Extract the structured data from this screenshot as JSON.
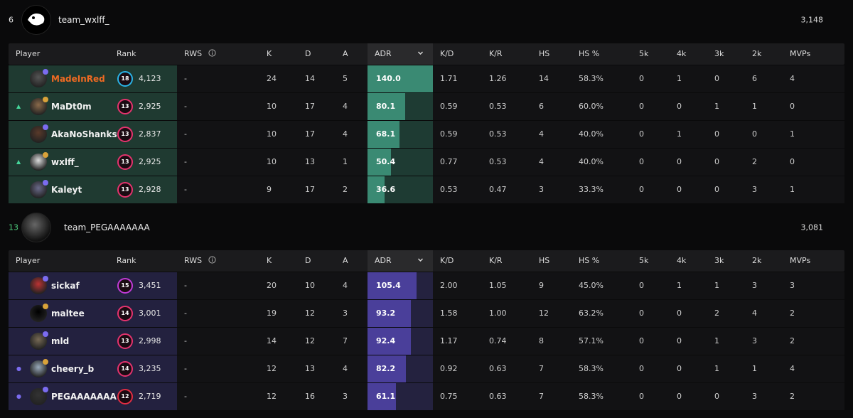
{
  "colors": {
    "team1_player_bg": "#1f3a31",
    "team1_adr_fill": "#3a8a73",
    "team1_adr_track": "#1e3b33",
    "team2_player_bg": "#23213f",
    "team2_adr_fill": "#4a3f9a",
    "team2_adr_track": "#24223f",
    "highlight_name": "#f06a22",
    "rank_cyan": "#2ab4e8",
    "rank_pink": "#e6336e",
    "rank_magenta": "#c23bd8",
    "rank_red": "#e22d43",
    "arrow_up": "#45d69a",
    "dot_purple": "#7b6cf0",
    "round_green": "#4fd07f"
  },
  "columns": {
    "player": "Player",
    "rank": "Rank",
    "rws": "RWS",
    "rws_icon": "info-icon",
    "k": "K",
    "d": "D",
    "a": "A",
    "adr": "ADR",
    "adr_sort_icon": "chevron-down-icon",
    "kd": "K/D",
    "kr": "K/R",
    "hs": "HS",
    "hs_pct": "HS %",
    "k5": "5k",
    "k4": "4k",
    "k3": "3k",
    "k2": "2k",
    "mvps": "MVPs"
  },
  "team1": {
    "round": "6",
    "name": "team_wxlff_",
    "score": "3,148",
    "players": [
      {
        "name": "MadeInRed",
        "rank_level": "18",
        "rank_color": "cyan",
        "elo": "4,123",
        "rws": "-",
        "k": "24",
        "d": "14",
        "a": "5",
        "adr": "140.0",
        "adr_value": 140.0,
        "kd": "1.71",
        "kr": "1.26",
        "hs": "14",
        "hs_pct": "58.3%",
        "k5": "0",
        "k4": "1",
        "k3": "0",
        "k2": "6",
        "mvps": "4",
        "indicator": "",
        "highlight": true
      },
      {
        "name": "MaDt0m",
        "rank_level": "13",
        "rank_color": "pink",
        "elo": "2,925",
        "rws": "-",
        "k": "10",
        "d": "17",
        "a": "4",
        "adr": "80.1",
        "adr_value": 80.1,
        "kd": "0.59",
        "kr": "0.53",
        "hs": "6",
        "hs_pct": "60.0%",
        "k5": "0",
        "k4": "0",
        "k3": "1",
        "k2": "1",
        "mvps": "0",
        "indicator": "up",
        "highlight": false
      },
      {
        "name": "AkaNoShanks",
        "rank_level": "13",
        "rank_color": "pink",
        "elo": "2,837",
        "rws": "-",
        "k": "10",
        "d": "17",
        "a": "4",
        "adr": "68.1",
        "adr_value": 68.1,
        "kd": "0.59",
        "kr": "0.53",
        "hs": "4",
        "hs_pct": "40.0%",
        "k5": "0",
        "k4": "1",
        "k3": "0",
        "k2": "0",
        "mvps": "1",
        "indicator": "",
        "highlight": false
      },
      {
        "name": "wxlff_",
        "rank_level": "13",
        "rank_color": "pink",
        "elo": "2,925",
        "rws": "-",
        "k": "10",
        "d": "13",
        "a": "1",
        "adr": "50.4",
        "adr_value": 50.4,
        "kd": "0.77",
        "kr": "0.53",
        "hs": "4",
        "hs_pct": "40.0%",
        "k5": "0",
        "k4": "0",
        "k3": "0",
        "k2": "2",
        "mvps": "0",
        "indicator": "up",
        "highlight": false
      },
      {
        "name": "Kaleyt",
        "rank_level": "13",
        "rank_color": "pink",
        "elo": "2,928",
        "rws": "-",
        "k": "9",
        "d": "17",
        "a": "2",
        "adr": "36.6",
        "adr_value": 36.6,
        "kd": "0.53",
        "kr": "0.47",
        "hs": "3",
        "hs_pct": "33.3%",
        "k5": "0",
        "k4": "0",
        "k3": "0",
        "k2": "3",
        "mvps": "1",
        "indicator": "",
        "highlight": false
      }
    ]
  },
  "team2": {
    "round": "13",
    "name": "team_PEGAAAAAAA",
    "score": "3,081",
    "players": [
      {
        "name": "sickaf",
        "rank_level": "15",
        "rank_color": "magenta",
        "elo": "3,451",
        "rws": "-",
        "k": "20",
        "d": "10",
        "a": "4",
        "adr": "105.4",
        "adr_value": 105.4,
        "kd": "2.00",
        "kr": "1.05",
        "hs": "9",
        "hs_pct": "45.0%",
        "k5": "0",
        "k4": "1",
        "k3": "1",
        "k2": "3",
        "mvps": "3",
        "indicator": "",
        "highlight": false
      },
      {
        "name": "maltee",
        "rank_level": "14",
        "rank_color": "pink",
        "elo": "3,001",
        "rws": "-",
        "k": "19",
        "d": "12",
        "a": "3",
        "adr": "93.2",
        "adr_value": 93.2,
        "kd": "1.58",
        "kr": "1.00",
        "hs": "12",
        "hs_pct": "63.2%",
        "k5": "0",
        "k4": "0",
        "k3": "2",
        "k2": "4",
        "mvps": "2",
        "indicator": "",
        "highlight": false
      },
      {
        "name": "mld",
        "rank_level": "13",
        "rank_color": "pink",
        "elo": "2,998",
        "rws": "-",
        "k": "14",
        "d": "12",
        "a": "7",
        "adr": "92.4",
        "adr_value": 92.4,
        "kd": "1.17",
        "kr": "0.74",
        "hs": "8",
        "hs_pct": "57.1%",
        "k5": "0",
        "k4": "0",
        "k3": "1",
        "k2": "3",
        "mvps": "2",
        "indicator": "",
        "highlight": false
      },
      {
        "name": "cheery_b",
        "rank_level": "14",
        "rank_color": "pink",
        "elo": "3,235",
        "rws": "-",
        "k": "12",
        "d": "13",
        "a": "4",
        "adr": "82.2",
        "adr_value": 82.2,
        "kd": "0.92",
        "kr": "0.63",
        "hs": "7",
        "hs_pct": "58.3%",
        "k5": "0",
        "k4": "0",
        "k3": "1",
        "k2": "1",
        "mvps": "4",
        "indicator": "dot",
        "highlight": false
      },
      {
        "name": "PEGAAAAAAA",
        "rank_level": "12",
        "rank_color": "red",
        "elo": "2,719",
        "rws": "-",
        "k": "12",
        "d": "16",
        "a": "3",
        "adr": "61.1",
        "adr_value": 61.1,
        "kd": "0.75",
        "kr": "0.63",
        "hs": "7",
        "hs_pct": "58.3%",
        "k5": "0",
        "k4": "0",
        "k3": "0",
        "k2": "3",
        "mvps": "2",
        "indicator": "dot",
        "highlight": false
      }
    ]
  }
}
